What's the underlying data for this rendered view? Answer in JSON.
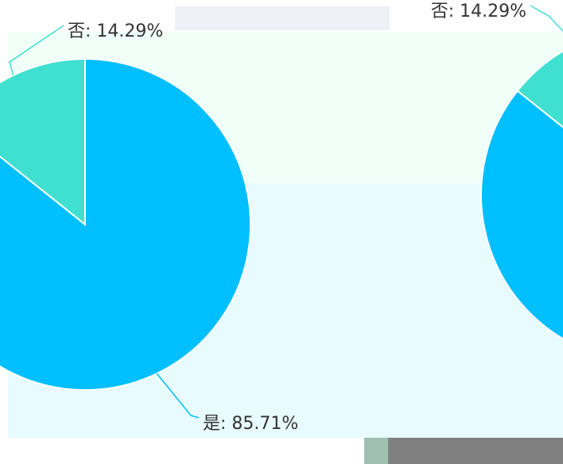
{
  "chart_data": [
    {
      "type": "pie",
      "categories": [
        "是",
        "否"
      ],
      "values": [
        85.71,
        14.29
      ],
      "value_labels": [
        "是: 85.71%",
        "否: 14.29%"
      ],
      "colors": [
        "#00bfff",
        "#40e0d0"
      ]
    },
    {
      "type": "pie",
      "categories": [
        "是",
        "否"
      ],
      "values": [
        85.71,
        14.29
      ],
      "value_labels": [
        null,
        "否: 14.29%"
      ],
      "colors": [
        "#00bfff",
        "#40e0d0"
      ]
    }
  ]
}
